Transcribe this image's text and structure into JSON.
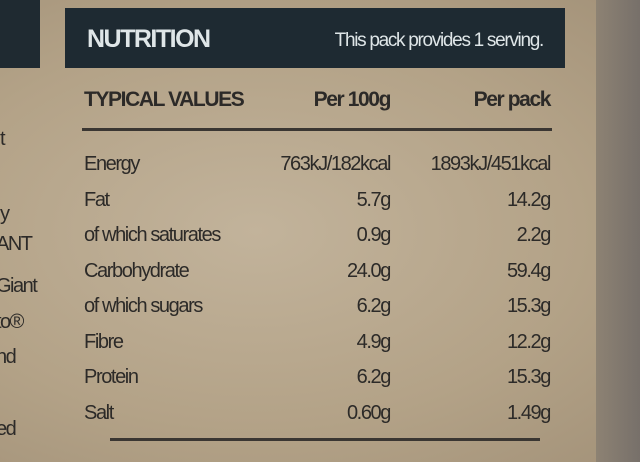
{
  "header": {
    "title": "NUTRITION",
    "note": "This pack provides 1 serving."
  },
  "table": {
    "columns": [
      "TYPICAL VALUES",
      "Per 100g",
      "Per pack"
    ],
    "rows": [
      [
        "Energy",
        "763kJ/182kcal",
        "1893kJ/451kcal"
      ],
      [
        "Fat",
        "5.7g",
        "14.2g"
      ],
      [
        "of which saturates",
        "0.9g",
        "2.2g"
      ],
      [
        "Carbohydrate",
        "24.0g",
        "59.4g"
      ],
      [
        "of which sugars",
        "6.2g",
        "15.3g"
      ],
      [
        "Fibre",
        "4.9g",
        "12.2g"
      ],
      [
        "Protein",
        "6.2g",
        "15.3g"
      ],
      [
        "Salt",
        "0.60g",
        "1.49g"
      ]
    ]
  },
  "left_fragments": [
    "t",
    "y",
    "ANT",
    "Giant",
    "to®",
    "nd",
    "ed"
  ]
}
